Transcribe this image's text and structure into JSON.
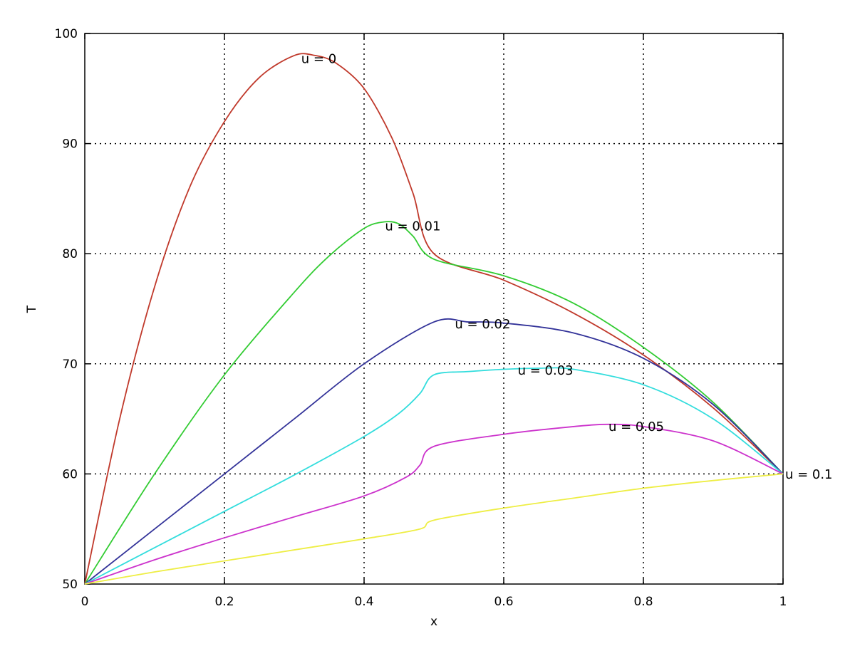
{
  "chart_data": {
    "type": "line",
    "title": "",
    "xlabel": "x",
    "ylabel": "T",
    "xlim": [
      0,
      1
    ],
    "ylim": [
      50,
      100
    ],
    "xticks": [
      0,
      0.2,
      0.4,
      0.6,
      0.8,
      1
    ],
    "yticks": [
      50,
      60,
      70,
      80,
      90,
      100
    ],
    "xtick_labels": [
      "0",
      "0.2",
      "0.4",
      "0.6",
      "0.8",
      "1"
    ],
    "ytick_labels": [
      "50",
      "60",
      "70",
      "80",
      "90",
      "100"
    ],
    "grid": true,
    "legend": "none (inline curve labels)",
    "series": [
      {
        "label": "u = 0",
        "color": "#c0392b",
        "label_at": [
          0.31,
          97.7
        ],
        "points": [
          [
            0,
            50
          ],
          [
            0.05,
            65
          ],
          [
            0.1,
            77
          ],
          [
            0.15,
            86
          ],
          [
            0.2,
            92
          ],
          [
            0.25,
            96
          ],
          [
            0.3,
            98
          ],
          [
            0.33,
            98
          ],
          [
            0.36,
            97.3
          ],
          [
            0.4,
            95
          ],
          [
            0.44,
            90.5
          ],
          [
            0.47,
            85.5
          ],
          [
            0.5,
            80
          ],
          [
            0.6,
            77.6
          ],
          [
            0.7,
            74.6
          ],
          [
            0.8,
            70.8
          ],
          [
            0.9,
            66
          ],
          [
            1,
            60
          ]
        ]
      },
      {
        "label": "u = 0.01",
        "color": "#33cc33",
        "label_at": [
          0.43,
          82.5
        ],
        "points": [
          [
            0,
            50
          ],
          [
            0.1,
            60
          ],
          [
            0.2,
            69
          ],
          [
            0.3,
            76.5
          ],
          [
            0.35,
            79.8
          ],
          [
            0.4,
            82.3
          ],
          [
            0.43,
            82.9
          ],
          [
            0.45,
            82.7
          ],
          [
            0.47,
            81.6
          ],
          [
            0.5,
            79.5
          ],
          [
            0.6,
            78
          ],
          [
            0.7,
            75.5
          ],
          [
            0.8,
            71.5
          ],
          [
            0.9,
            66.5
          ],
          [
            1,
            60
          ]
        ]
      },
      {
        "label": "u = 0.02",
        "color": "#333399",
        "label_at": [
          0.53,
          73.6
        ],
        "points": [
          [
            0,
            50
          ],
          [
            0.1,
            55
          ],
          [
            0.2,
            60
          ],
          [
            0.3,
            65
          ],
          [
            0.4,
            70
          ],
          [
            0.5,
            73.8
          ],
          [
            0.55,
            73.8
          ],
          [
            0.6,
            73.7
          ],
          [
            0.7,
            72.8
          ],
          [
            0.8,
            70.5
          ],
          [
            0.9,
            66.3
          ],
          [
            1,
            60
          ]
        ]
      },
      {
        "label": "u = 0.03",
        "color": "#33dddd",
        "label_at": [
          0.62,
          69.4
        ],
        "points": [
          [
            0,
            50
          ],
          [
            0.1,
            53.3
          ],
          [
            0.2,
            56.6
          ],
          [
            0.3,
            59.9
          ],
          [
            0.4,
            63.4
          ],
          [
            0.45,
            65.5
          ],
          [
            0.48,
            67.3
          ],
          [
            0.5,
            69
          ],
          [
            0.55,
            69.3
          ],
          [
            0.6,
            69.5
          ],
          [
            0.65,
            69.6
          ],
          [
            0.7,
            69.5
          ],
          [
            0.8,
            68.1
          ],
          [
            0.9,
            65
          ],
          [
            1,
            60
          ]
        ]
      },
      {
        "label": "u = 0.05",
        "color": "#cc33cc",
        "label_at": [
          0.75,
          64.3
        ],
        "points": [
          [
            0,
            50
          ],
          [
            0.1,
            52.2
          ],
          [
            0.2,
            54.2
          ],
          [
            0.3,
            56.1
          ],
          [
            0.4,
            58
          ],
          [
            0.46,
            59.7
          ],
          [
            0.48,
            60.8
          ],
          [
            0.5,
            62.5
          ],
          [
            0.6,
            63.6
          ],
          [
            0.7,
            64.3
          ],
          [
            0.75,
            64.5
          ],
          [
            0.8,
            64.3
          ],
          [
            0.9,
            63
          ],
          [
            1,
            60
          ]
        ]
      },
      {
        "label": "u = 0.1",
        "color": "#eeee44",
        "label_at": [
          1.003,
          59.95
        ],
        "points": [
          [
            0,
            50
          ],
          [
            0.1,
            51.1
          ],
          [
            0.2,
            52.1
          ],
          [
            0.3,
            53.1
          ],
          [
            0.4,
            54.1
          ],
          [
            0.48,
            55
          ],
          [
            0.5,
            55.8
          ],
          [
            0.6,
            56.9
          ],
          [
            0.7,
            57.8
          ],
          [
            0.8,
            58.7
          ],
          [
            0.9,
            59.4
          ],
          [
            1,
            60
          ]
        ]
      }
    ]
  }
}
